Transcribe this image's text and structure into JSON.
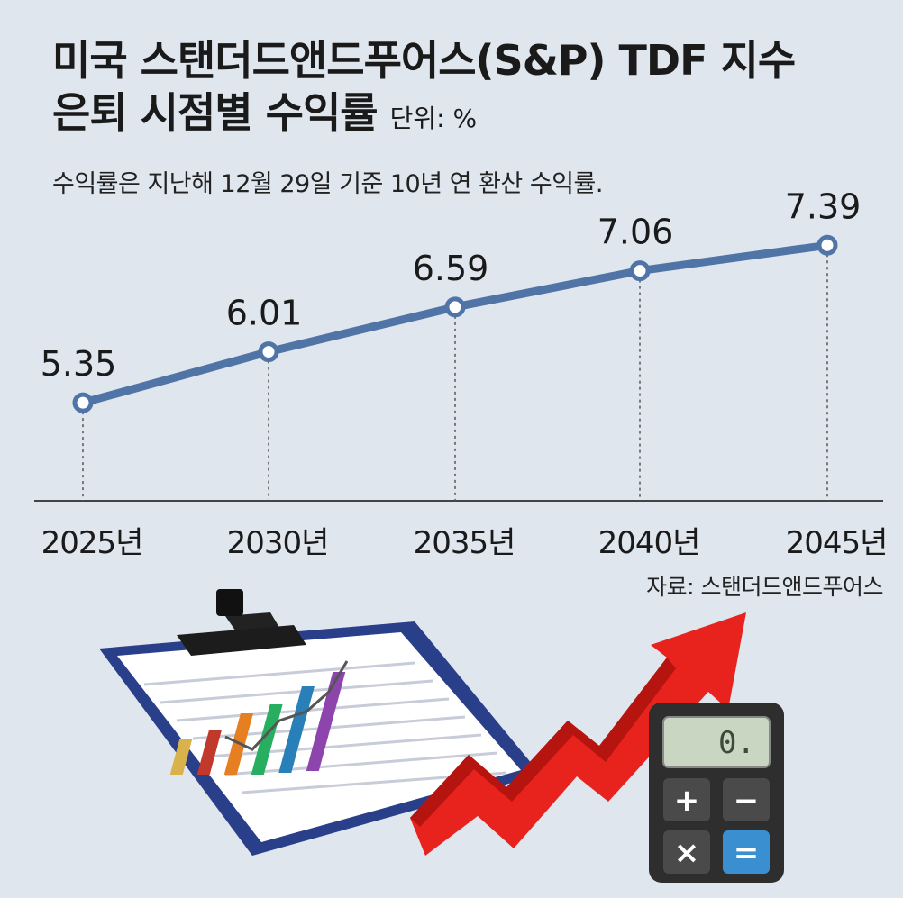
{
  "header": {
    "title_line1": "미국 스탠더드앤드푸어스(S&P) TDF 지수",
    "title_line2": "은퇴 시점별 수익률",
    "unit": "단위: %",
    "subtitle": "수익률은 지난해 12월 29일 기준 10년 연 환산 수익률."
  },
  "source": "자료: 스탠더드앤드푸어스",
  "colors": {
    "line": "#5174a6",
    "marker_fill": "#ffffff",
    "background": "#dfe6ee",
    "text": "#1a1a1a"
  },
  "chart_data": {
    "type": "line",
    "categories": [
      "2025년",
      "2030년",
      "2035년",
      "2040년",
      "2045년"
    ],
    "values": [
      5.35,
      6.01,
      6.59,
      7.06,
      7.39
    ],
    "value_labels": [
      "5.35",
      "6.01",
      "6.59",
      "7.06",
      "7.39"
    ],
    "ylim": [
      4.5,
      8.0
    ],
    "grid": false,
    "legend": "none"
  },
  "illustration": {
    "icons": [
      "clipboard-icon",
      "bar-chart-icon",
      "rising-arrow-icon",
      "calculator-icon"
    ],
    "calculator_display": "0.",
    "calculator_keys": [
      "+",
      "−",
      "×",
      "="
    ]
  }
}
